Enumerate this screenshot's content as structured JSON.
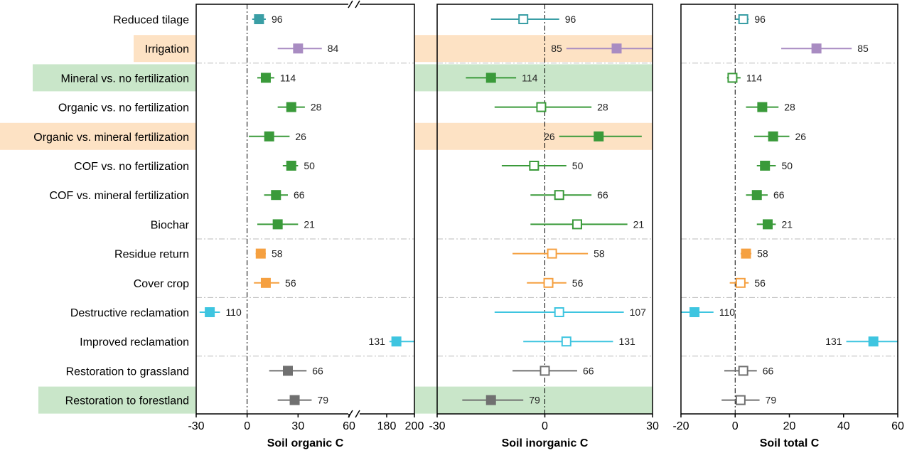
{
  "chart_data": {
    "type": "forest",
    "categories": [
      "Reduced tilage",
      "Irrigation",
      "Mineral vs. no fertilization",
      "Organic vs. no fertilization",
      "Organic vs. mineral fertilization",
      "COF vs. no fertilization",
      "COF vs. mineral fertilization",
      "Biochar",
      "Residue return",
      "Cover crop",
      "Destructive reclamation",
      "Improved reclamation",
      "Restoration to grassland",
      "Restoration to forestland"
    ],
    "row_highlights": [
      "none",
      "orange",
      "green",
      "none",
      "orange",
      "none",
      "none",
      "none",
      "none",
      "none",
      "none",
      "none",
      "none",
      "green"
    ],
    "group_separators_after": [
      1,
      7,
      9,
      11
    ],
    "colors": {
      "teal": "#3a9ea5",
      "purple": "#a98cc2",
      "green": "#3a9a3a",
      "orange": "#f5a040",
      "cyan": "#3ec5e0",
      "gray": "#707070",
      "highlight_orange": "#fde2c4",
      "highlight_green": "#c9e6c9",
      "separator": "#bbbbbb"
    },
    "panels": [
      {
        "xlabel": "Soil organic C",
        "axis_break": true,
        "ticks": [
          "-30",
          "0",
          "30",
          "60",
          "180",
          "200"
        ],
        "segments": [
          {
            "range": [
              -30,
              60
            ]
          },
          {
            "range": [
              160,
              200
            ]
          }
        ],
        "series": [
          {
            "mean": 7,
            "lo": 3,
            "hi": 11,
            "n": "96",
            "color": "teal",
            "filled": true
          },
          {
            "mean": 30,
            "lo": 18,
            "hi": 44,
            "n": "84",
            "color": "purple",
            "filled": true
          },
          {
            "mean": 11,
            "lo": 6,
            "hi": 16,
            "n": "114",
            "color": "green",
            "filled": true
          },
          {
            "mean": 26,
            "lo": 18,
            "hi": 34,
            "n": "28",
            "color": "green",
            "filled": true
          },
          {
            "mean": 13,
            "lo": 1,
            "hi": 25,
            "n": "26",
            "color": "green",
            "filled": true
          },
          {
            "mean": 26,
            "lo": 21,
            "hi": 30,
            "n": "50",
            "color": "green",
            "filled": true
          },
          {
            "mean": 17,
            "lo": 10,
            "hi": 24,
            "n": "66",
            "color": "green",
            "filled": true
          },
          {
            "mean": 18,
            "lo": 6,
            "hi": 30,
            "n": "21",
            "color": "green",
            "filled": true
          },
          {
            "mean": 8,
            "lo": 5,
            "hi": 11,
            "n": "58",
            "color": "orange",
            "filled": true
          },
          {
            "mean": 11,
            "lo": 4,
            "hi": 19,
            "n": "56",
            "color": "orange",
            "filled": true
          },
          {
            "mean": -22,
            "lo": -28,
            "hi": -16,
            "n": "110",
            "color": "cyan",
            "filled": true
          },
          {
            "mean": 187,
            "lo": 182,
            "hi": 200,
            "n": "131",
            "color": "cyan",
            "filled": true,
            "label_left": true
          },
          {
            "mean": 24,
            "lo": 13,
            "hi": 35,
            "n": "66",
            "color": "gray",
            "filled": true
          },
          {
            "mean": 28,
            "lo": 18,
            "hi": 38,
            "n": "79",
            "color": "gray",
            "filled": true
          }
        ]
      },
      {
        "xlabel": "Soil inorganic C",
        "axis_break": false,
        "ticks": [
          "-30",
          "0",
          "30"
        ],
        "segments": [
          {
            "range": [
              -30,
              30
            ]
          }
        ],
        "series": [
          {
            "mean": -6,
            "lo": -15,
            "hi": 4,
            "n": "96",
            "color": "teal",
            "filled": false
          },
          {
            "mean": 20,
            "lo": 6,
            "hi": 30,
            "n": "85",
            "color": "purple",
            "filled": true,
            "label_left": true
          },
          {
            "mean": -15,
            "lo": -22,
            "hi": -8,
            "n": "114",
            "color": "green",
            "filled": true
          },
          {
            "mean": -1,
            "lo": -14,
            "hi": 13,
            "n": "28",
            "color": "green",
            "filled": false
          },
          {
            "mean": 15,
            "lo": 4,
            "hi": 27,
            "n": "26",
            "color": "green",
            "filled": true,
            "label_left": true
          },
          {
            "mean": -3,
            "lo": -12,
            "hi": 6,
            "n": "50",
            "color": "green",
            "filled": false
          },
          {
            "mean": 4,
            "lo": -4,
            "hi": 13,
            "n": "66",
            "color": "green",
            "filled": false
          },
          {
            "mean": 9,
            "lo": -4,
            "hi": 23,
            "n": "21",
            "color": "green",
            "filled": false
          },
          {
            "mean": 2,
            "lo": -9,
            "hi": 12,
            "n": "58",
            "color": "orange",
            "filled": false
          },
          {
            "mean": 1,
            "lo": -5,
            "hi": 6,
            "n": "56",
            "color": "orange",
            "filled": false
          },
          {
            "mean": 4,
            "lo": -14,
            "hi": 22,
            "n": "107",
            "color": "cyan",
            "filled": false
          },
          {
            "mean": 6,
            "lo": -6,
            "hi": 19,
            "n": "131",
            "color": "cyan",
            "filled": false
          },
          {
            "mean": 0,
            "lo": -9,
            "hi": 9,
            "n": "66",
            "color": "gray",
            "filled": false
          },
          {
            "mean": -15,
            "lo": -23,
            "hi": -6,
            "n": "79",
            "color": "gray",
            "filled": true
          }
        ]
      },
      {
        "xlabel": "Soil total C",
        "axis_break": false,
        "ticks": [
          "-20",
          "0",
          "20",
          "40",
          "60"
        ],
        "segments": [
          {
            "range": [
              -20,
              60
            ]
          }
        ],
        "series": [
          {
            "mean": 3,
            "lo": 0,
            "hi": 5,
            "n": "96",
            "color": "teal",
            "filled": false
          },
          {
            "mean": 30,
            "lo": 17,
            "hi": 43,
            "n": "85",
            "color": "purple",
            "filled": true
          },
          {
            "mean": -1,
            "lo": -3,
            "hi": 2,
            "n": "114",
            "color": "green",
            "filled": false
          },
          {
            "mean": 10,
            "lo": 4,
            "hi": 16,
            "n": "28",
            "color": "green",
            "filled": true
          },
          {
            "mean": 14,
            "lo": 7,
            "hi": 20,
            "n": "26",
            "color": "green",
            "filled": true
          },
          {
            "mean": 11,
            "lo": 8,
            "hi": 15,
            "n": "50",
            "color": "green",
            "filled": true
          },
          {
            "mean": 8,
            "lo": 4,
            "hi": 12,
            "n": "66",
            "color": "green",
            "filled": true
          },
          {
            "mean": 12,
            "lo": 8,
            "hi": 15,
            "n": "21",
            "color": "green",
            "filled": true
          },
          {
            "mean": 4,
            "lo": 2,
            "hi": 6,
            "n": "58",
            "color": "orange",
            "filled": true
          },
          {
            "mean": 2,
            "lo": -2,
            "hi": 5,
            "n": "56",
            "color": "orange",
            "filled": false
          },
          {
            "mean": -15,
            "lo": -20,
            "hi": -8,
            "n": "110",
            "color": "cyan",
            "filled": true
          },
          {
            "mean": 51,
            "lo": 41,
            "hi": 60,
            "n": "131",
            "color": "cyan",
            "filled": true,
            "label_left": true
          },
          {
            "mean": 3,
            "lo": -4,
            "hi": 8,
            "n": "66",
            "color": "gray",
            "filled": false
          },
          {
            "mean": 2,
            "lo": -5,
            "hi": 9,
            "n": "79",
            "color": "gray",
            "filled": false
          }
        ]
      }
    ]
  }
}
